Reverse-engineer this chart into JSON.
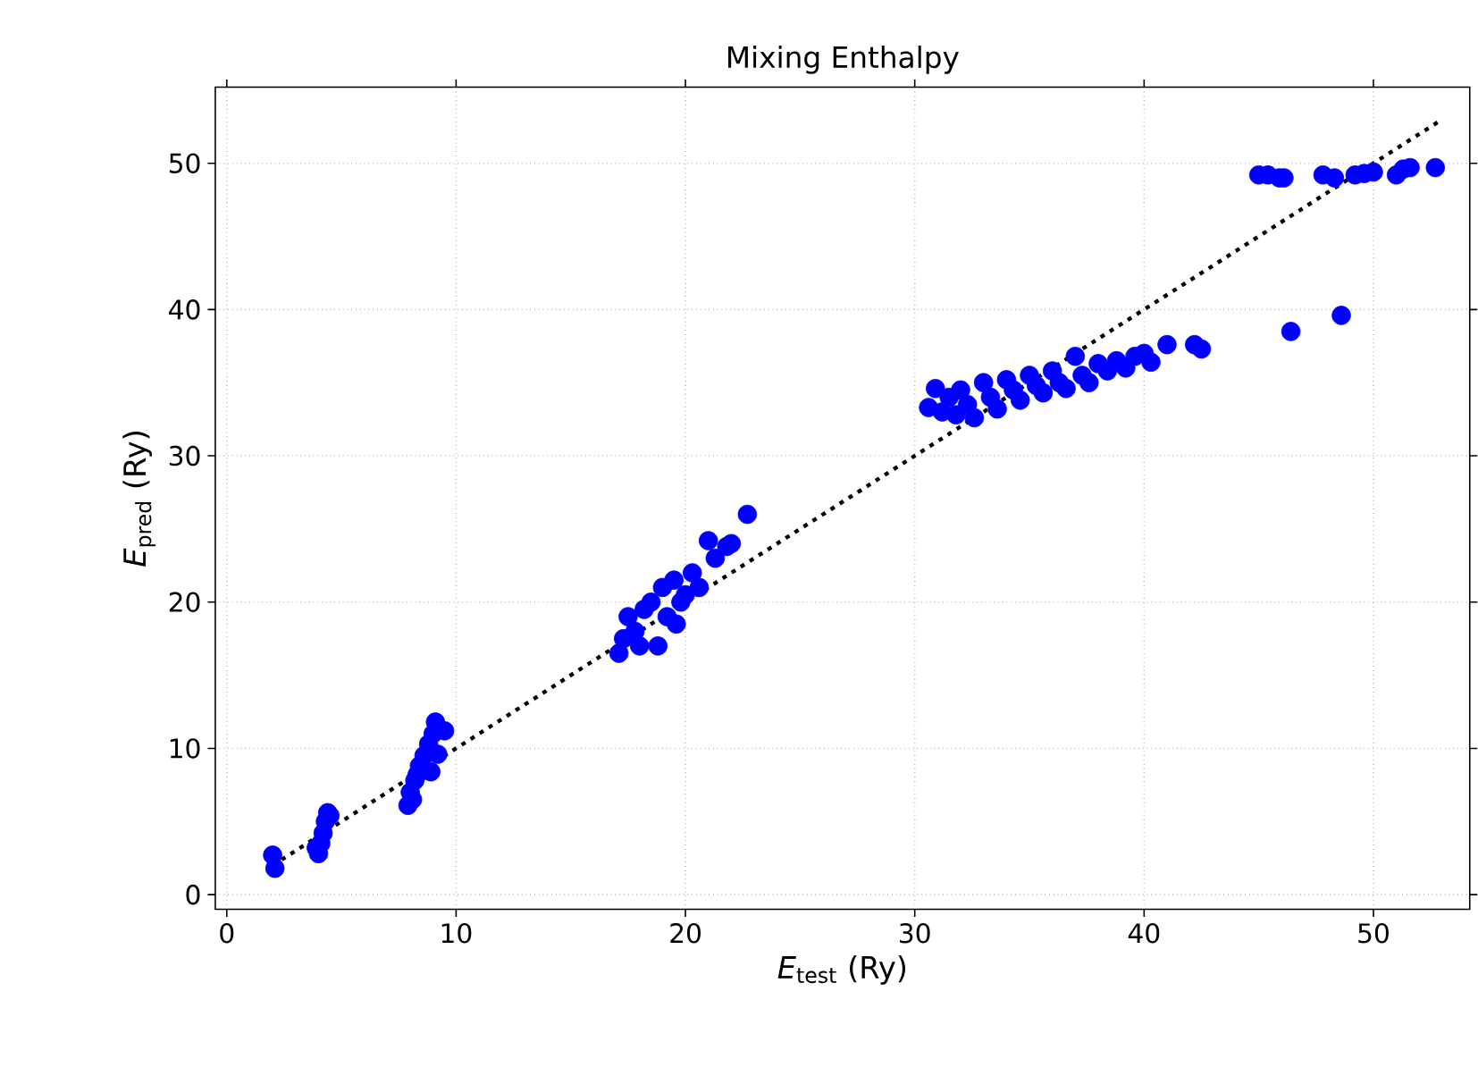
{
  "chart_data": {
    "type": "scatter",
    "title": "Mixing Enthalpy",
    "xlabel": "*E*$_{test}$ (Ry)",
    "ylabel": "*E*$_{pred}$ (Ry)",
    "xlim": [
      -0.5,
      54.2
    ],
    "ylim": [
      -1,
      55.2
    ],
    "xticks": [
      0,
      10,
      20,
      30,
      40,
      50
    ],
    "yticks": [
      0,
      10,
      20,
      30,
      40,
      50
    ],
    "grid": true,
    "series": [
      {
        "color": "#0000ff",
        "marker": "circle",
        "x": [
          2,
          2.1,
          4,
          4.1,
          4.2,
          4.3,
          4.4,
          4.5,
          3.9,
          7.9,
          8,
          8.1,
          8.2,
          8.4,
          8.6,
          8.8,
          9,
          9.1,
          9.5,
          8.9,
          9.2,
          8.3,
          17.1,
          17.3,
          17.5,
          17.8,
          18,
          18.2,
          18.5,
          18.8,
          19,
          19.2,
          19.5,
          19.8,
          20,
          20.3,
          20.6,
          21,
          21.3,
          21.8,
          22,
          22.7,
          19.6,
          30.6,
          30.9,
          31.2,
          31.5,
          31.8,
          32,
          32.3,
          32.6,
          33,
          33.3,
          33.6,
          34,
          34.3,
          34.6,
          35,
          35.3,
          35.6,
          36,
          36.3,
          36.6,
          37,
          37.3,
          37.6,
          38,
          38.4,
          38.8,
          39.2,
          39.6,
          40,
          40.3,
          41,
          42.2,
          42.5,
          45,
          45.4,
          45.9,
          46.1,
          47.8,
          48.3,
          49.2,
          49.6,
          50,
          51,
          51.3,
          51.6,
          52.7,
          46.4,
          48.6
        ],
        "values": [
          2.7,
          1.8,
          2.8,
          3.5,
          4.2,
          5,
          5.6,
          5.4,
          3.2,
          6.1,
          7,
          6.5,
          7.8,
          8.8,
          9.5,
          10.3,
          11,
          11.8,
          11.2,
          8.4,
          9.6,
          8.2,
          16.5,
          17.5,
          19,
          18,
          17,
          19.5,
          20,
          17,
          21,
          19,
          21.5,
          20,
          20.5,
          22,
          21,
          24.2,
          23,
          23.8,
          24,
          26,
          18.5,
          33.3,
          34.6,
          33,
          34,
          32.8,
          34.5,
          33.5,
          32.6,
          35,
          34,
          33.2,
          35.2,
          34.5,
          33.8,
          35.5,
          34.8,
          34.3,
          35.8,
          35,
          34.6,
          36.8,
          35.5,
          35,
          36.3,
          35.8,
          36.5,
          36,
          36.8,
          37,
          36.4,
          37.6,
          37.6,
          37.3,
          49.2,
          49.2,
          49,
          49,
          49.2,
          49,
          49.2,
          49.3,
          49.4,
          49.2,
          49.6,
          49.7,
          49.7,
          38.5,
          39.6
        ]
      },
      {
        "type": "line",
        "color": "#000000",
        "line_style": "dotted",
        "marker": "none",
        "x": [
          2,
          52.8
        ],
        "values": [
          2,
          52.8
        ]
      }
    ]
  }
}
